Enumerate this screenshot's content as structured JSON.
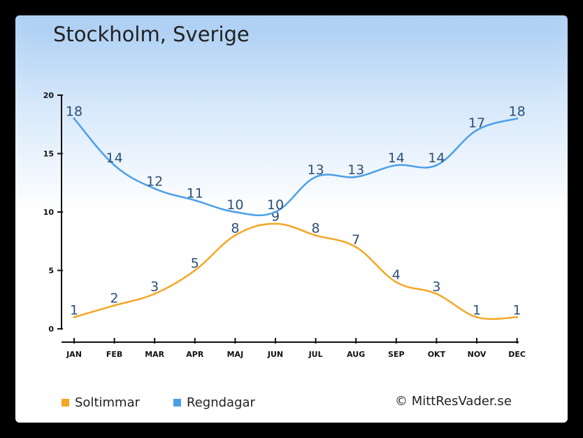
{
  "chart_data": {
    "type": "line",
    "title": "Stockholm, Sverige",
    "categories": [
      "JAN",
      "FEB",
      "MAR",
      "APR",
      "MAJ",
      "JUN",
      "JUL",
      "AUG",
      "SEP",
      "OKT",
      "NOV",
      "DEC"
    ],
    "series": [
      {
        "name": "Soltimmar",
        "values": [
          1,
          2,
          3,
          5,
          8,
          9,
          8,
          7,
          4,
          3,
          1,
          1
        ],
        "color": "#f5a623"
      },
      {
        "name": "Regndagar",
        "values": [
          18,
          14,
          12,
          11,
          10,
          10,
          13,
          13,
          14,
          14,
          17,
          18
        ],
        "color": "#4a9fe8"
      }
    ],
    "yticks": [
      0,
      5,
      10,
      15,
      20
    ],
    "ylim": [
      0,
      20
    ],
    "legend_position": "bottom-left",
    "grid": false,
    "label_color": "#2c4f79"
  },
  "credit": "© MittResVader.se"
}
